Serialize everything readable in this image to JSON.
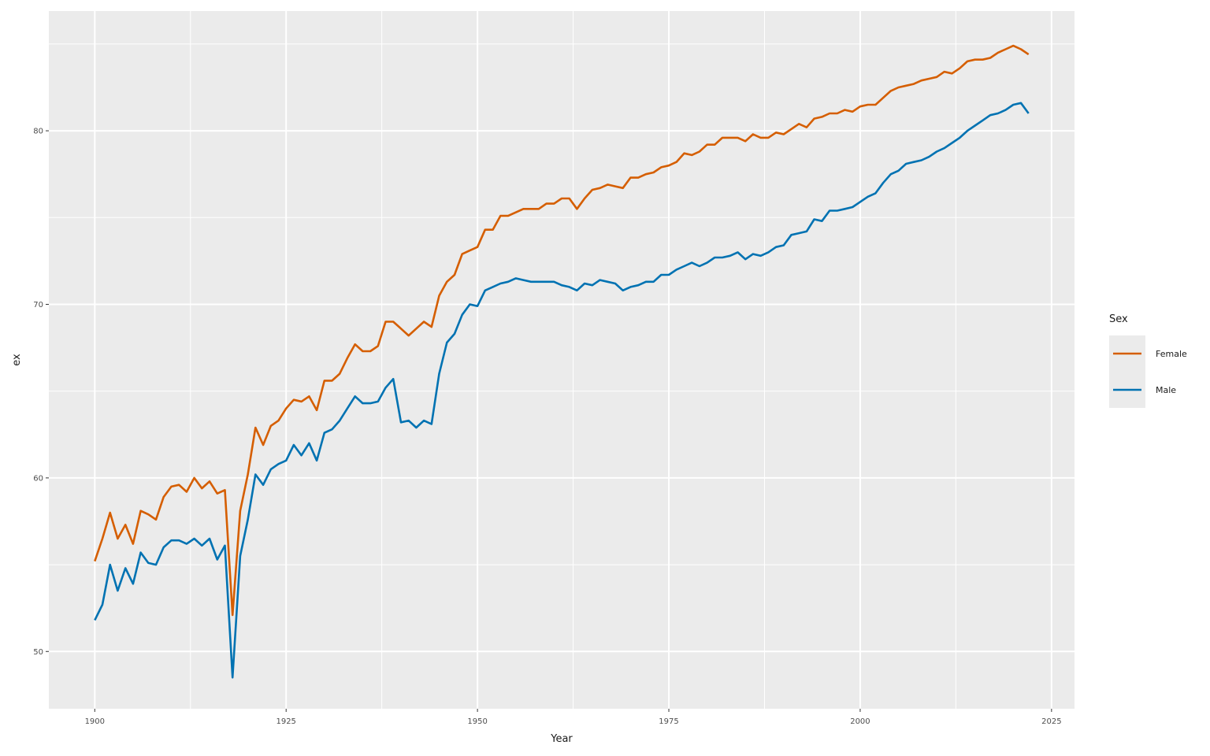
{
  "chart_data": {
    "type": "line",
    "title": "",
    "xlabel": "Year",
    "ylabel": "ex",
    "xlim": [
      1894,
      2028
    ],
    "ylim": [
      46.7,
      86.9
    ],
    "xticks": [
      1900,
      1925,
      1950,
      1975,
      2000,
      2025
    ],
    "yticks": [
      50,
      60,
      70,
      80
    ],
    "grid": true,
    "legend": {
      "title": "Sex",
      "position": "right"
    },
    "x": [
      1900,
      1901,
      1902,
      1903,
      1904,
      1905,
      1906,
      1907,
      1908,
      1909,
      1910,
      1911,
      1912,
      1913,
      1914,
      1915,
      1916,
      1917,
      1918,
      1919,
      1920,
      1921,
      1922,
      1923,
      1924,
      1925,
      1926,
      1927,
      1928,
      1929,
      1930,
      1931,
      1932,
      1933,
      1934,
      1935,
      1936,
      1937,
      1938,
      1939,
      1940,
      1941,
      1942,
      1943,
      1944,
      1945,
      1946,
      1947,
      1948,
      1949,
      1950,
      1951,
      1952,
      1953,
      1954,
      1955,
      1956,
      1957,
      1958,
      1959,
      1960,
      1961,
      1962,
      1963,
      1964,
      1965,
      1966,
      1967,
      1968,
      1969,
      1970,
      1971,
      1972,
      1973,
      1974,
      1975,
      1976,
      1977,
      1978,
      1979,
      1980,
      1981,
      1982,
      1983,
      1984,
      1985,
      1986,
      1987,
      1988,
      1989,
      1990,
      1991,
      1992,
      1993,
      1994,
      1995,
      1996,
      1997,
      1998,
      1999,
      2000,
      2001,
      2002,
      2003,
      2004,
      2005,
      2006,
      2007,
      2008,
      2009,
      2010,
      2011,
      2012,
      2013,
      2014,
      2015,
      2016,
      2017,
      2018,
      2019,
      2020,
      2021,
      2022
    ],
    "series": [
      {
        "name": "Female",
        "color": "#D55E00",
        "values": [
          55.2,
          56.5,
          58.0,
          56.5,
          57.3,
          56.2,
          58.1,
          57.9,
          57.6,
          58.9,
          59.5,
          59.6,
          59.2,
          60.0,
          59.4,
          59.8,
          59.1,
          59.3,
          52.1,
          58.1,
          60.2,
          62.9,
          61.9,
          63.0,
          63.3,
          64.0,
          64.5,
          64.4,
          64.7,
          63.9,
          65.6,
          65.6,
          66.0,
          66.9,
          67.7,
          67.3,
          67.3,
          67.6,
          69.0,
          69.0,
          68.6,
          68.2,
          68.6,
          69.0,
          68.7,
          70.5,
          71.3,
          71.7,
          72.9,
          73.1,
          73.3,
          74.3,
          74.3,
          75.1,
          75.1,
          75.3,
          75.5,
          75.5,
          75.5,
          75.8,
          75.8,
          76.1,
          76.1,
          75.5,
          76.1,
          76.6,
          76.7,
          76.9,
          76.8,
          76.7,
          77.3,
          77.3,
          77.5,
          77.6,
          77.9,
          78.0,
          78.2,
          78.7,
          78.6,
          78.8,
          79.2,
          79.2,
          79.6,
          79.6,
          79.6,
          79.4,
          79.8,
          79.6,
          79.6,
          79.9,
          79.8,
          80.1,
          80.4,
          80.2,
          80.7,
          80.8,
          81.0,
          81.0,
          81.2,
          81.1,
          81.4,
          81.5,
          81.5,
          81.9,
          82.3,
          82.5,
          82.6,
          82.7,
          82.9,
          83.0,
          83.1,
          83.4,
          83.3,
          83.6,
          84.0,
          84.1,
          84.1,
          84.2,
          84.5,
          84.7,
          84.9,
          84.7,
          84.4
        ]
      },
      {
        "name": "Male",
        "color": "#0072B2",
        "values": [
          51.8,
          52.7,
          55.0,
          53.5,
          54.8,
          53.9,
          55.7,
          55.1,
          55.0,
          56.0,
          56.4,
          56.4,
          56.2,
          56.5,
          56.1,
          56.5,
          55.3,
          56.1,
          48.5,
          55.5,
          57.6,
          60.2,
          59.6,
          60.5,
          60.8,
          61.0,
          61.9,
          61.3,
          62.0,
          61.0,
          62.6,
          62.8,
          63.3,
          64.0,
          64.7,
          64.3,
          64.3,
          64.4,
          65.2,
          65.7,
          63.2,
          63.3,
          62.9,
          63.3,
          63.1,
          66.0,
          67.8,
          68.3,
          69.4,
          70.0,
          69.9,
          70.8,
          71.0,
          71.2,
          71.3,
          71.5,
          71.4,
          71.3,
          71.3,
          71.3,
          71.3,
          71.1,
          71.0,
          70.8,
          71.2,
          71.1,
          71.4,
          71.3,
          71.2,
          70.8,
          71.0,
          71.1,
          71.3,
          71.3,
          71.7,
          71.7,
          72.0,
          72.2,
          72.4,
          72.2,
          72.4,
          72.7,
          72.7,
          72.8,
          73.0,
          72.6,
          72.9,
          72.8,
          73.0,
          73.3,
          73.4,
          74.0,
          74.1,
          74.2,
          74.9,
          74.8,
          75.4,
          75.4,
          75.5,
          75.6,
          75.9,
          76.2,
          76.4,
          77.0,
          77.5,
          77.7,
          78.1,
          78.2,
          78.3,
          78.5,
          78.8,
          79.0,
          79.3,
          79.6,
          80.0,
          80.3,
          80.6,
          80.9,
          81.0,
          81.2,
          81.5,
          81.6,
          81.0
        ]
      }
    ]
  }
}
